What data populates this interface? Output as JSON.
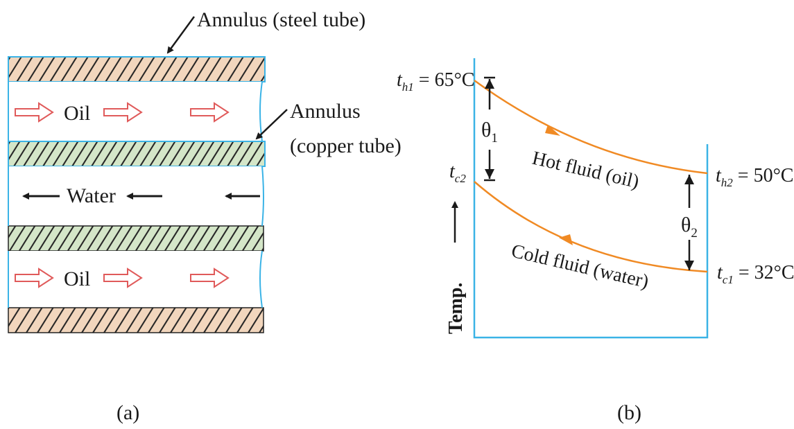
{
  "colors": {
    "outline": "#3ab3e6",
    "steel_fill": "#f2d6bd",
    "copper_fill": "#d4e6c8",
    "hatch": "#222222",
    "flow_arrow": "#e05a5a",
    "curve": "#f08a24",
    "text": "#1a1a1a"
  },
  "figure_a": {
    "label_outer_annulus": "Annulus (steel tube)",
    "label_inner_annulus_line1": "Annulus",
    "label_inner_annulus_line2": "(copper tube)",
    "oil_label_top": "Oil",
    "water_label": "Water",
    "oil_label_bottom": "Oil",
    "caption": "(a)"
  },
  "figure_b": {
    "th1_sym": "t",
    "th1_sub": "h1",
    "th1_val": " = 65°C",
    "th2_sym": "t",
    "th2_sub": "h2",
    "th2_val": " = 50°C",
    "tc1_sym": "t",
    "tc1_sub": "c1",
    "tc1_val": " = 32°C",
    "tc2_sym": "t",
    "tc2_sub": "c2",
    "theta1_sym": "θ",
    "theta1_sub": "1",
    "theta2_sym": "θ",
    "theta2_sub": "2",
    "hot_curve_label": "Hot fluid (oil)",
    "cold_curve_label": "Cold fluid (water)",
    "temp_axis_label": "Temp.",
    "caption": "(b)"
  }
}
